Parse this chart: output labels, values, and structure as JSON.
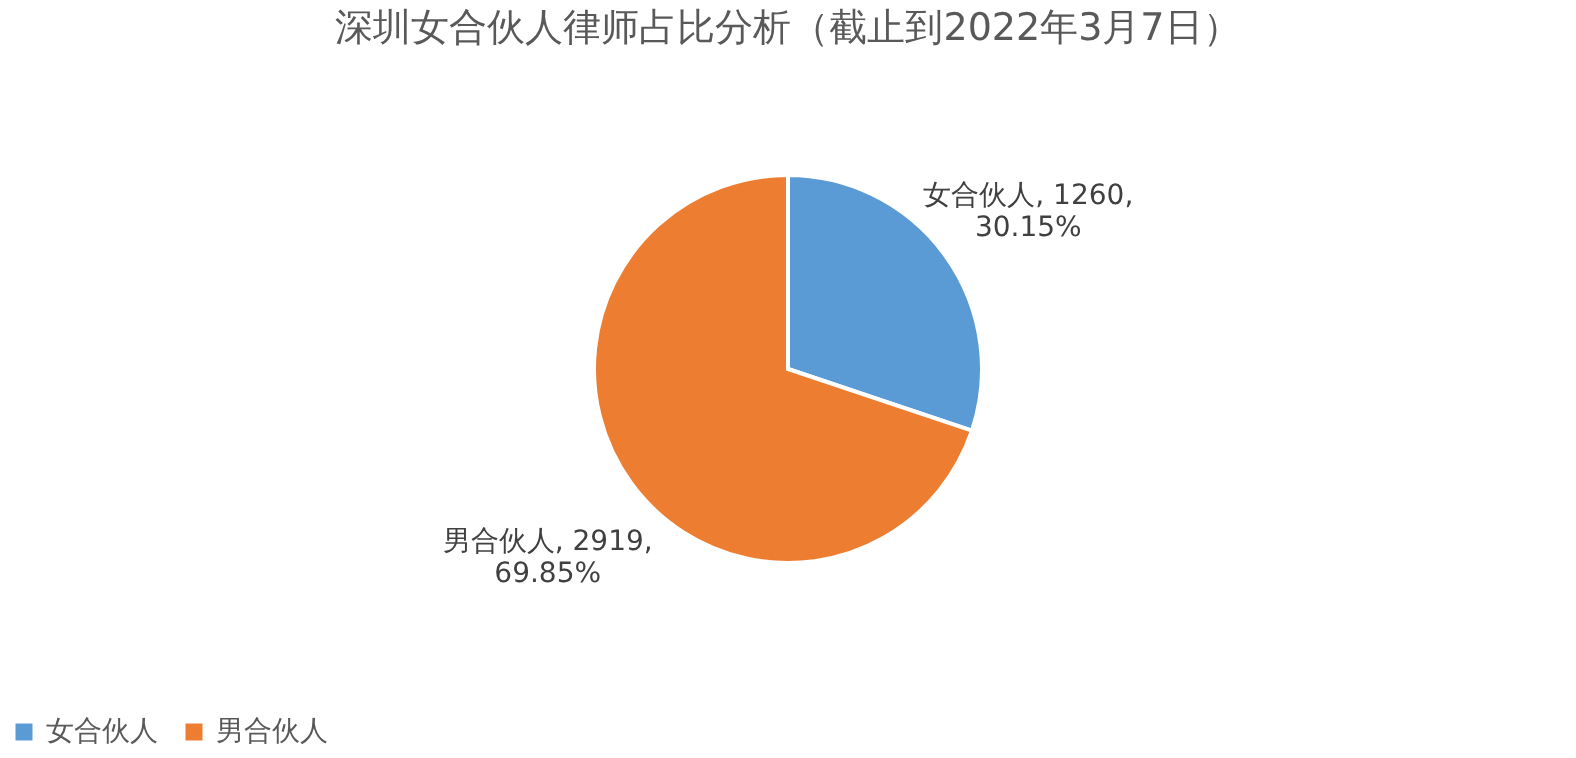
{
  "chart_data": {
    "type": "pie",
    "title": "深圳女合伙人律师占比分析（截止到2022年3月7日）",
    "categories": [
      "女合伙人",
      "男合伙人"
    ],
    "values": [
      1260,
      2919
    ],
    "colors": [
      "#5b9bd5",
      "#ed7d31"
    ],
    "value_labels": [
      "女合伙人, 1260,\n30.15%",
      "男合伙人, 2919,\n69.85%"
    ],
    "legend": "bottom"
  }
}
